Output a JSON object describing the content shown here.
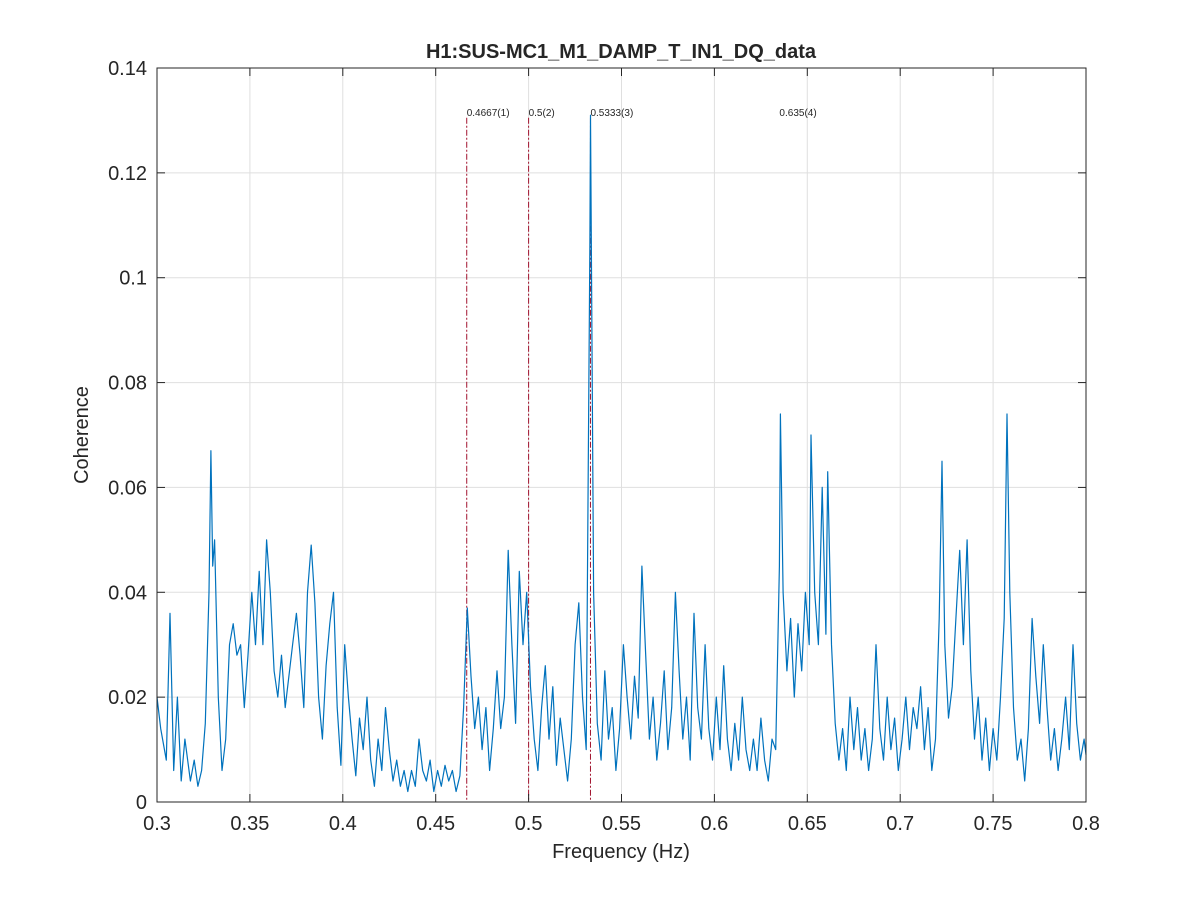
{
  "chart_data": {
    "type": "line",
    "title": "H1:SUS-MC1_M1_DAMP_T_IN1_DQ_data",
    "xlabel": "Frequency (Hz)",
    "ylabel": "Coherence",
    "xlim": [
      0.3,
      0.8
    ],
    "ylim": [
      0,
      0.14
    ],
    "xticks": [
      0.3,
      0.35,
      0.4,
      0.45,
      0.5,
      0.55,
      0.6,
      0.65,
      0.7,
      0.75,
      0.8
    ],
    "xtick_labels": [
      "0.3",
      "0.35",
      "0.4",
      "0.45",
      "0.5",
      "0.55",
      "0.6",
      "0.65",
      "0.7",
      "0.75",
      "0.8"
    ],
    "yticks": [
      0,
      0.02,
      0.04,
      0.06,
      0.08,
      0.1,
      0.12,
      0.14
    ],
    "ytick_labels": [
      "0",
      "0.02",
      "0.04",
      "0.06",
      "0.08",
      "0.1",
      "0.12",
      "0.14"
    ],
    "grid": true,
    "series": [
      {
        "color": "#0072bd",
        "points": [
          [
            0.3,
            0.02
          ],
          [
            0.302,
            0.014
          ],
          [
            0.305,
            0.008
          ],
          [
            0.307,
            0.036
          ],
          [
            0.309,
            0.006
          ],
          [
            0.311,
            0.02
          ],
          [
            0.313,
            0.004
          ],
          [
            0.315,
            0.012
          ],
          [
            0.318,
            0.004
          ],
          [
            0.32,
            0.008
          ],
          [
            0.322,
            0.003
          ],
          [
            0.324,
            0.006
          ],
          [
            0.326,
            0.015
          ],
          [
            0.328,
            0.04
          ],
          [
            0.329,
            0.067
          ],
          [
            0.33,
            0.045
          ],
          [
            0.331,
            0.05
          ],
          [
            0.333,
            0.02
          ],
          [
            0.335,
            0.006
          ],
          [
            0.337,
            0.012
          ],
          [
            0.339,
            0.03
          ],
          [
            0.341,
            0.034
          ],
          [
            0.343,
            0.028
          ],
          [
            0.345,
            0.03
          ],
          [
            0.347,
            0.018
          ],
          [
            0.349,
            0.028
          ],
          [
            0.351,
            0.04
          ],
          [
            0.353,
            0.03
          ],
          [
            0.355,
            0.044
          ],
          [
            0.357,
            0.03
          ],
          [
            0.359,
            0.05
          ],
          [
            0.361,
            0.04
          ],
          [
            0.363,
            0.025
          ],
          [
            0.365,
            0.02
          ],
          [
            0.367,
            0.028
          ],
          [
            0.369,
            0.018
          ],
          [
            0.371,
            0.024
          ],
          [
            0.373,
            0.03
          ],
          [
            0.375,
            0.036
          ],
          [
            0.377,
            0.028
          ],
          [
            0.379,
            0.018
          ],
          [
            0.381,
            0.04
          ],
          [
            0.383,
            0.049
          ],
          [
            0.385,
            0.038
          ],
          [
            0.387,
            0.02
          ],
          [
            0.389,
            0.012
          ],
          [
            0.391,
            0.026
          ],
          [
            0.393,
            0.034
          ],
          [
            0.395,
            0.04
          ],
          [
            0.397,
            0.018
          ],
          [
            0.399,
            0.007
          ],
          [
            0.401,
            0.03
          ],
          [
            0.403,
            0.02
          ],
          [
            0.405,
            0.012
          ],
          [
            0.407,
            0.005
          ],
          [
            0.409,
            0.016
          ],
          [
            0.411,
            0.01
          ],
          [
            0.413,
            0.02
          ],
          [
            0.415,
            0.008
          ],
          [
            0.417,
            0.003
          ],
          [
            0.419,
            0.012
          ],
          [
            0.421,
            0.006
          ],
          [
            0.423,
            0.018
          ],
          [
            0.425,
            0.01
          ],
          [
            0.427,
            0.004
          ],
          [
            0.429,
            0.008
          ],
          [
            0.431,
            0.003
          ],
          [
            0.433,
            0.006
          ],
          [
            0.435,
            0.002
          ],
          [
            0.437,
            0.006
          ],
          [
            0.439,
            0.003
          ],
          [
            0.441,
            0.012
          ],
          [
            0.443,
            0.006
          ],
          [
            0.445,
            0.004
          ],
          [
            0.447,
            0.008
          ],
          [
            0.449,
            0.002
          ],
          [
            0.451,
            0.006
          ],
          [
            0.453,
            0.003
          ],
          [
            0.455,
            0.007
          ],
          [
            0.457,
            0.004
          ],
          [
            0.459,
            0.006
          ],
          [
            0.461,
            0.002
          ],
          [
            0.463,
            0.005
          ],
          [
            0.465,
            0.018
          ],
          [
            0.467,
            0.037
          ],
          [
            0.469,
            0.024
          ],
          [
            0.471,
            0.014
          ],
          [
            0.473,
            0.02
          ],
          [
            0.475,
            0.01
          ],
          [
            0.477,
            0.018
          ],
          [
            0.479,
            0.006
          ],
          [
            0.481,
            0.014
          ],
          [
            0.483,
            0.025
          ],
          [
            0.485,
            0.014
          ],
          [
            0.487,
            0.02
          ],
          [
            0.489,
            0.048
          ],
          [
            0.491,
            0.03
          ],
          [
            0.493,
            0.015
          ],
          [
            0.495,
            0.044
          ],
          [
            0.497,
            0.03
          ],
          [
            0.499,
            0.04
          ],
          [
            0.501,
            0.022
          ],
          [
            0.503,
            0.012
          ],
          [
            0.505,
            0.006
          ],
          [
            0.507,
            0.018
          ],
          [
            0.509,
            0.026
          ],
          [
            0.511,
            0.012
          ],
          [
            0.513,
            0.022
          ],
          [
            0.515,
            0.007
          ],
          [
            0.517,
            0.016
          ],
          [
            0.519,
            0.01
          ],
          [
            0.521,
            0.004
          ],
          [
            0.523,
            0.012
          ],
          [
            0.525,
            0.03
          ],
          [
            0.527,
            0.038
          ],
          [
            0.529,
            0.02
          ],
          [
            0.531,
            0.01
          ],
          [
            0.533,
            0.107
          ],
          [
            0.5333,
            0.131
          ],
          [
            0.535,
            0.04
          ],
          [
            0.537,
            0.015
          ],
          [
            0.539,
            0.008
          ],
          [
            0.541,
            0.025
          ],
          [
            0.543,
            0.012
          ],
          [
            0.545,
            0.018
          ],
          [
            0.547,
            0.006
          ],
          [
            0.549,
            0.014
          ],
          [
            0.551,
            0.03
          ],
          [
            0.553,
            0.02
          ],
          [
            0.555,
            0.012
          ],
          [
            0.557,
            0.024
          ],
          [
            0.559,
            0.016
          ],
          [
            0.561,
            0.045
          ],
          [
            0.563,
            0.028
          ],
          [
            0.565,
            0.012
          ],
          [
            0.567,
            0.02
          ],
          [
            0.569,
            0.008
          ],
          [
            0.571,
            0.015
          ],
          [
            0.573,
            0.025
          ],
          [
            0.575,
            0.01
          ],
          [
            0.577,
            0.018
          ],
          [
            0.579,
            0.04
          ],
          [
            0.581,
            0.025
          ],
          [
            0.583,
            0.012
          ],
          [
            0.585,
            0.02
          ],
          [
            0.587,
            0.008
          ],
          [
            0.589,
            0.036
          ],
          [
            0.591,
            0.018
          ],
          [
            0.593,
            0.012
          ],
          [
            0.595,
            0.03
          ],
          [
            0.597,
            0.014
          ],
          [
            0.599,
            0.008
          ],
          [
            0.601,
            0.02
          ],
          [
            0.603,
            0.01
          ],
          [
            0.605,
            0.026
          ],
          [
            0.607,
            0.012
          ],
          [
            0.609,
            0.006
          ],
          [
            0.611,
            0.015
          ],
          [
            0.613,
            0.008
          ],
          [
            0.615,
            0.02
          ],
          [
            0.617,
            0.01
          ],
          [
            0.619,
            0.006
          ],
          [
            0.621,
            0.012
          ],
          [
            0.623,
            0.006
          ],
          [
            0.625,
            0.016
          ],
          [
            0.627,
            0.008
          ],
          [
            0.629,
            0.004
          ],
          [
            0.631,
            0.012
          ],
          [
            0.633,
            0.01
          ],
          [
            0.635,
            0.045
          ],
          [
            0.6355,
            0.074
          ],
          [
            0.637,
            0.04
          ],
          [
            0.639,
            0.025
          ],
          [
            0.641,
            0.035
          ],
          [
            0.643,
            0.02
          ],
          [
            0.645,
            0.034
          ],
          [
            0.647,
            0.025
          ],
          [
            0.649,
            0.04
          ],
          [
            0.651,
            0.03
          ],
          [
            0.652,
            0.07
          ],
          [
            0.654,
            0.04
          ],
          [
            0.656,
            0.03
          ],
          [
            0.658,
            0.06
          ],
          [
            0.66,
            0.032
          ],
          [
            0.661,
            0.063
          ],
          [
            0.663,
            0.03
          ],
          [
            0.665,
            0.015
          ],
          [
            0.667,
            0.008
          ],
          [
            0.669,
            0.014
          ],
          [
            0.671,
            0.006
          ],
          [
            0.673,
            0.02
          ],
          [
            0.675,
            0.01
          ],
          [
            0.677,
            0.018
          ],
          [
            0.679,
            0.008
          ],
          [
            0.681,
            0.014
          ],
          [
            0.683,
            0.006
          ],
          [
            0.685,
            0.012
          ],
          [
            0.687,
            0.03
          ],
          [
            0.689,
            0.014
          ],
          [
            0.691,
            0.008
          ],
          [
            0.693,
            0.02
          ],
          [
            0.695,
            0.01
          ],
          [
            0.697,
            0.016
          ],
          [
            0.699,
            0.006
          ],
          [
            0.701,
            0.012
          ],
          [
            0.703,
            0.02
          ],
          [
            0.705,
            0.01
          ],
          [
            0.707,
            0.018
          ],
          [
            0.709,
            0.014
          ],
          [
            0.711,
            0.022
          ],
          [
            0.713,
            0.01
          ],
          [
            0.715,
            0.018
          ],
          [
            0.717,
            0.006
          ],
          [
            0.719,
            0.012
          ],
          [
            0.721,
            0.035
          ],
          [
            0.7225,
            0.065
          ],
          [
            0.724,
            0.03
          ],
          [
            0.726,
            0.016
          ],
          [
            0.728,
            0.022
          ],
          [
            0.73,
            0.035
          ],
          [
            0.732,
            0.048
          ],
          [
            0.734,
            0.03
          ],
          [
            0.736,
            0.05
          ],
          [
            0.738,
            0.025
          ],
          [
            0.74,
            0.012
          ],
          [
            0.742,
            0.02
          ],
          [
            0.744,
            0.008
          ],
          [
            0.746,
            0.016
          ],
          [
            0.748,
            0.006
          ],
          [
            0.75,
            0.014
          ],
          [
            0.752,
            0.008
          ],
          [
            0.754,
            0.02
          ],
          [
            0.756,
            0.035
          ],
          [
            0.7575,
            0.074
          ],
          [
            0.759,
            0.04
          ],
          [
            0.761,
            0.018
          ],
          [
            0.763,
            0.008
          ],
          [
            0.765,
            0.012
          ],
          [
            0.767,
            0.004
          ],
          [
            0.769,
            0.014
          ],
          [
            0.771,
            0.035
          ],
          [
            0.773,
            0.024
          ],
          [
            0.775,
            0.015
          ],
          [
            0.777,
            0.03
          ],
          [
            0.779,
            0.018
          ],
          [
            0.781,
            0.008
          ],
          [
            0.783,
            0.014
          ],
          [
            0.785,
            0.006
          ],
          [
            0.787,
            0.012
          ],
          [
            0.789,
            0.02
          ],
          [
            0.791,
            0.01
          ],
          [
            0.793,
            0.03
          ],
          [
            0.795,
            0.015
          ],
          [
            0.797,
            0.008
          ],
          [
            0.799,
            0.012
          ],
          [
            0.8,
            0.009
          ]
        ]
      }
    ],
    "markers": [
      {
        "x": 0.4667,
        "label": "0.4667(1)",
        "color": "#a2142f"
      },
      {
        "x": 0.5,
        "label": "0.5(2)",
        "color": "#a2142f"
      },
      {
        "x": 0.5333,
        "label": "0.5333(3)",
        "color": "#a2142f"
      },
      {
        "x": 0.635,
        "label": "0.635(4)",
        "color": "#a2142f",
        "line": false
      }
    ],
    "marker_label_y": 0.1305
  }
}
